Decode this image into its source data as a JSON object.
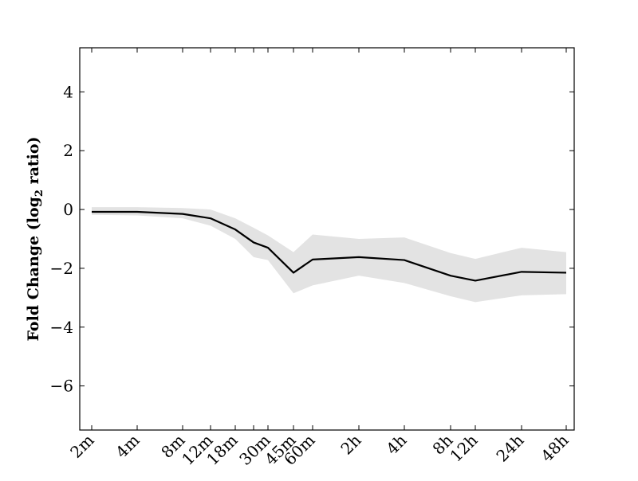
{
  "chart_data": {
    "type": "line",
    "title": "",
    "xlabel": "",
    "ylabel": "Fold Change (log",
    "ylabel_subscript": "2",
    "ylabel_suffix": " ratio)",
    "x_ticks": [
      "2m",
      "4m",
      "8m",
      "12m",
      "18m",
      "30m",
      "45m",
      "60m",
      "2h",
      "4h",
      "8h",
      "12h",
      "24h",
      "48h"
    ],
    "y_ticks": [
      "4",
      "2",
      "0",
      "−2",
      "−4",
      "−6"
    ],
    "ylim": [
      -7.5,
      5.5
    ],
    "series": [
      {
        "values": [
          {
            "x": "2m",
            "y": -0.08,
            "lower": -0.18,
            "upper": 0.08
          },
          {
            "x": "4m",
            "y": -0.08,
            "lower": -0.2,
            "upper": 0.08
          },
          {
            "x": "8m",
            "y": -0.15,
            "lower": -0.3,
            "upper": 0.05
          },
          {
            "x": "12m",
            "y": -0.3,
            "lower": -0.55,
            "upper": 0.0
          },
          {
            "x": "18m",
            "y": -0.68,
            "lower": -1.0,
            "upper": -0.3
          },
          {
            "x": "",
            "y": -1.12,
            "lower": -1.62,
            "upper": -0.62
          },
          {
            "x": "30m",
            "y": -1.3,
            "lower": -1.72,
            "upper": -0.88
          },
          {
            "x": "45m",
            "y": -2.15,
            "lower": -2.85,
            "upper": -1.45
          },
          {
            "x": "60m",
            "y": -1.7,
            "lower": -2.58,
            "upper": -0.85
          },
          {
            "x": "2h",
            "y": -1.62,
            "lower": -2.25,
            "upper": -1.0
          },
          {
            "x": "4h",
            "y": -1.72,
            "lower": -2.5,
            "upper": -0.95
          },
          {
            "x": "8h",
            "y": -2.25,
            "lower": -2.95,
            "upper": -1.48
          },
          {
            "x": "12h",
            "y": -2.42,
            "lower": -3.15,
            "upper": -1.68
          },
          {
            "x": "24h",
            "y": -2.12,
            "lower": -2.92,
            "upper": -1.3
          },
          {
            "x": "48h",
            "y": -2.15,
            "lower": -2.88,
            "upper": -1.45
          }
        ]
      }
    ],
    "band": "confidence range",
    "grid": false,
    "legend": "none",
    "colors": {
      "line": "#000000",
      "band": "#e3e3e3",
      "axis": "#000000",
      "background": "#ffffff"
    }
  }
}
